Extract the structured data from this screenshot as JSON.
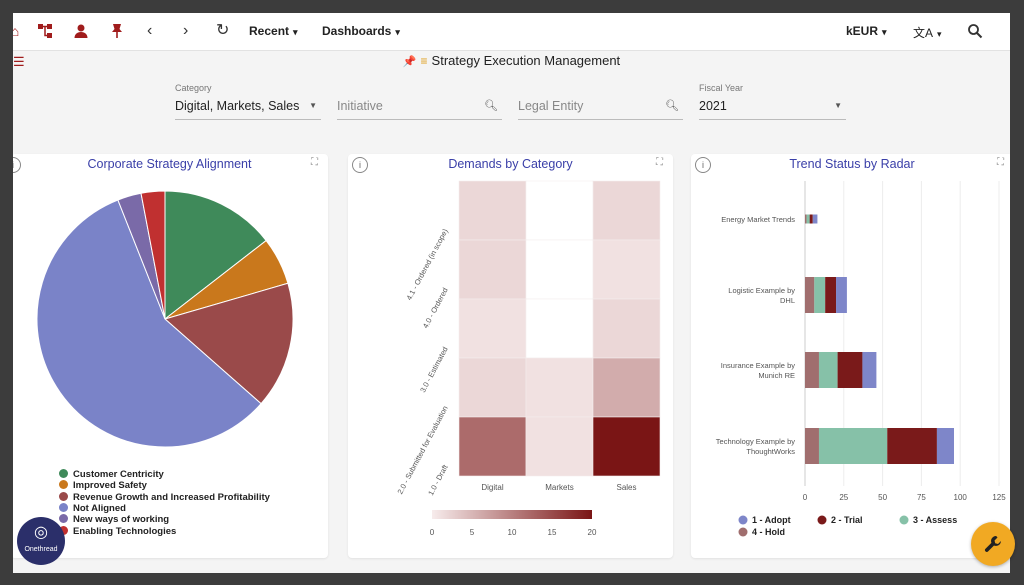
{
  "toolbar": {
    "recent_label": "Recent",
    "dashboards_label": "Dashboards",
    "currency_label": "kEUR",
    "nav_back": "‹",
    "nav_forward": "›",
    "refresh": "↻",
    "chev": "▾",
    "search_glyph": "⚲",
    "translate_glyph": "文A"
  },
  "page": {
    "title": "Strategy Execution Management",
    "pin_glyph": "📌",
    "filter_glyph": "≡"
  },
  "filters": {
    "category": {
      "label": "Category",
      "value": "Digital, Markets, Sales"
    },
    "initiative": {
      "placeholder": "Initiative"
    },
    "legal_entity": {
      "placeholder": "Legal Entity"
    },
    "fiscal_year": {
      "label": "Fiscal Year",
      "value": "2021"
    }
  },
  "colors": {
    "brand_red": "#a01c1c",
    "title_blue": "#3a3fa8",
    "fab_orange": "#f1a923"
  },
  "cards": {
    "pie": {
      "title": "Corporate Strategy Alignment"
    },
    "heatmap": {
      "title": "Demands by Category"
    },
    "bars": {
      "title": "Trend Status by Radar"
    }
  },
  "chart_data": [
    {
      "type": "pie",
      "title": "Corporate Strategy Alignment",
      "slices": [
        {
          "label": "Customer Centricity",
          "value": 14.5,
          "color": "#3f8a5a"
        },
        {
          "label": "Improved Safety",
          "value": 6.0,
          "color": "#c9781c"
        },
        {
          "label": "Revenue Growth and Increased Profitability",
          "value": 16.0,
          "color": "#9a4a4a"
        },
        {
          "label": "Not Aligned",
          "value": 57.5,
          "color": "#7a83c8"
        },
        {
          "label": "New ways of working",
          "value": 3.0,
          "color": "#7a6aa8"
        },
        {
          "label": "Enabling Technologies",
          "value": 3.0,
          "color": "#c03030"
        }
      ],
      "legend": [
        "Customer Centricity",
        "Improved Safety",
        "Revenue Growth and Increased Profitability",
        "Not Aligned",
        "New ways of working",
        "Enabling Technologies"
      ],
      "legend_position": "bottom-left"
    },
    {
      "type": "heatmap",
      "title": "Demands by Category",
      "x_categories": [
        "Digital",
        "Markets",
        "Sales"
      ],
      "y_categories": [
        "4.1 - Ordered (in scope)",
        "4.0 - Ordered",
        "3.0 - Estimated",
        "2.0 - Submitted for Evaluation",
        "1.0 - Draft"
      ],
      "values": [
        [
          2,
          0,
          2
        ],
        [
          2,
          0,
          1
        ],
        [
          1,
          0,
          2
        ],
        [
          2,
          1,
          6
        ],
        [
          12,
          1,
          20
        ]
      ],
      "colorbar": {
        "min": 0,
        "max": 20,
        "ticks": [
          "0",
          "5",
          "10",
          "15",
          "20"
        ],
        "low_color": "#f7ecec",
        "high_color": "#7a1515"
      }
    },
    {
      "type": "bar",
      "orientation": "horizontal",
      "stacked": true,
      "title": "Trend Status by Radar",
      "categories": [
        "Energy Market Trends",
        "Logistic Example by DHL",
        "Insurance Example by Munich RE",
        "Technology Example by ThoughtWorks"
      ],
      "series": [
        {
          "name": "4 - Hold",
          "color": "#a06e6e",
          "values": [
            1,
            6,
            9,
            9
          ]
        },
        {
          "name": "3 - Assess",
          "color": "#86c1a8",
          "values": [
            2,
            7,
            12,
            44
          ]
        },
        {
          "name": "2 - Trial",
          "color": "#7a1a1a",
          "values": [
            2,
            7,
            16,
            32
          ]
        },
        {
          "name": "1 - Adopt",
          "color": "#7e86c9",
          "values": [
            3,
            7,
            9,
            11
          ]
        }
      ],
      "xlim": [
        0,
        125
      ],
      "xticks": [
        "0",
        "25",
        "50",
        "75",
        "100",
        "125"
      ],
      "legend_order": [
        "1 - Adopt",
        "2 - Trial",
        "3 - Assess",
        "4 - Hold"
      ],
      "legend_position": "bottom",
      "grid": true
    }
  ],
  "fab": {
    "glyph": "🔧"
  },
  "logo": {
    "text": "Onethread",
    "mark": "◎"
  }
}
